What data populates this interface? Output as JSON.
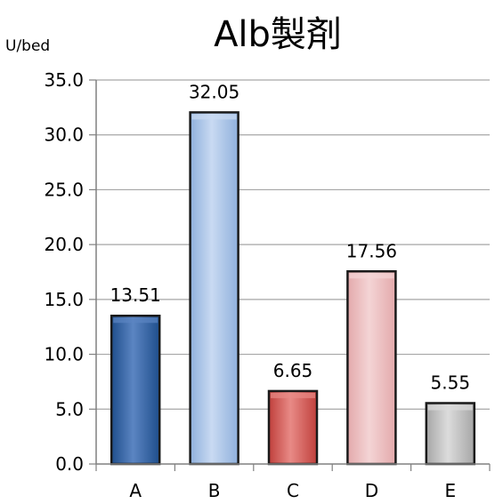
{
  "chart_data": {
    "type": "bar",
    "title": "Alb製剤",
    "ylabel": "U/bed",
    "xlabel": "",
    "categories": [
      "A",
      "B",
      "C",
      "D",
      "E"
    ],
    "values": [
      13.51,
      32.05,
      6.65,
      17.56,
      5.55
    ],
    "value_labels": [
      "13.51",
      "32.05",
      "6.65",
      "17.56",
      "5.55"
    ],
    "ylim": [
      0,
      35
    ],
    "yticks": [
      "0.0",
      "5.0",
      "10.0",
      "15.0",
      "20.0",
      "25.0",
      "30.0",
      "35.0"
    ],
    "ytick_values": [
      0,
      5,
      10,
      15,
      20,
      25,
      30,
      35
    ],
    "grid": true,
    "legend": "none",
    "bar_colors": [
      "#1f4e8c",
      "#8fb0dc",
      "#c0403c",
      "#e3a9ab",
      "#a6a6a6"
    ],
    "bar_highlights": [
      "#5b85c2",
      "#c9daf2",
      "#e88a86",
      "#f4d4d5",
      "#dcdcdc"
    ]
  }
}
